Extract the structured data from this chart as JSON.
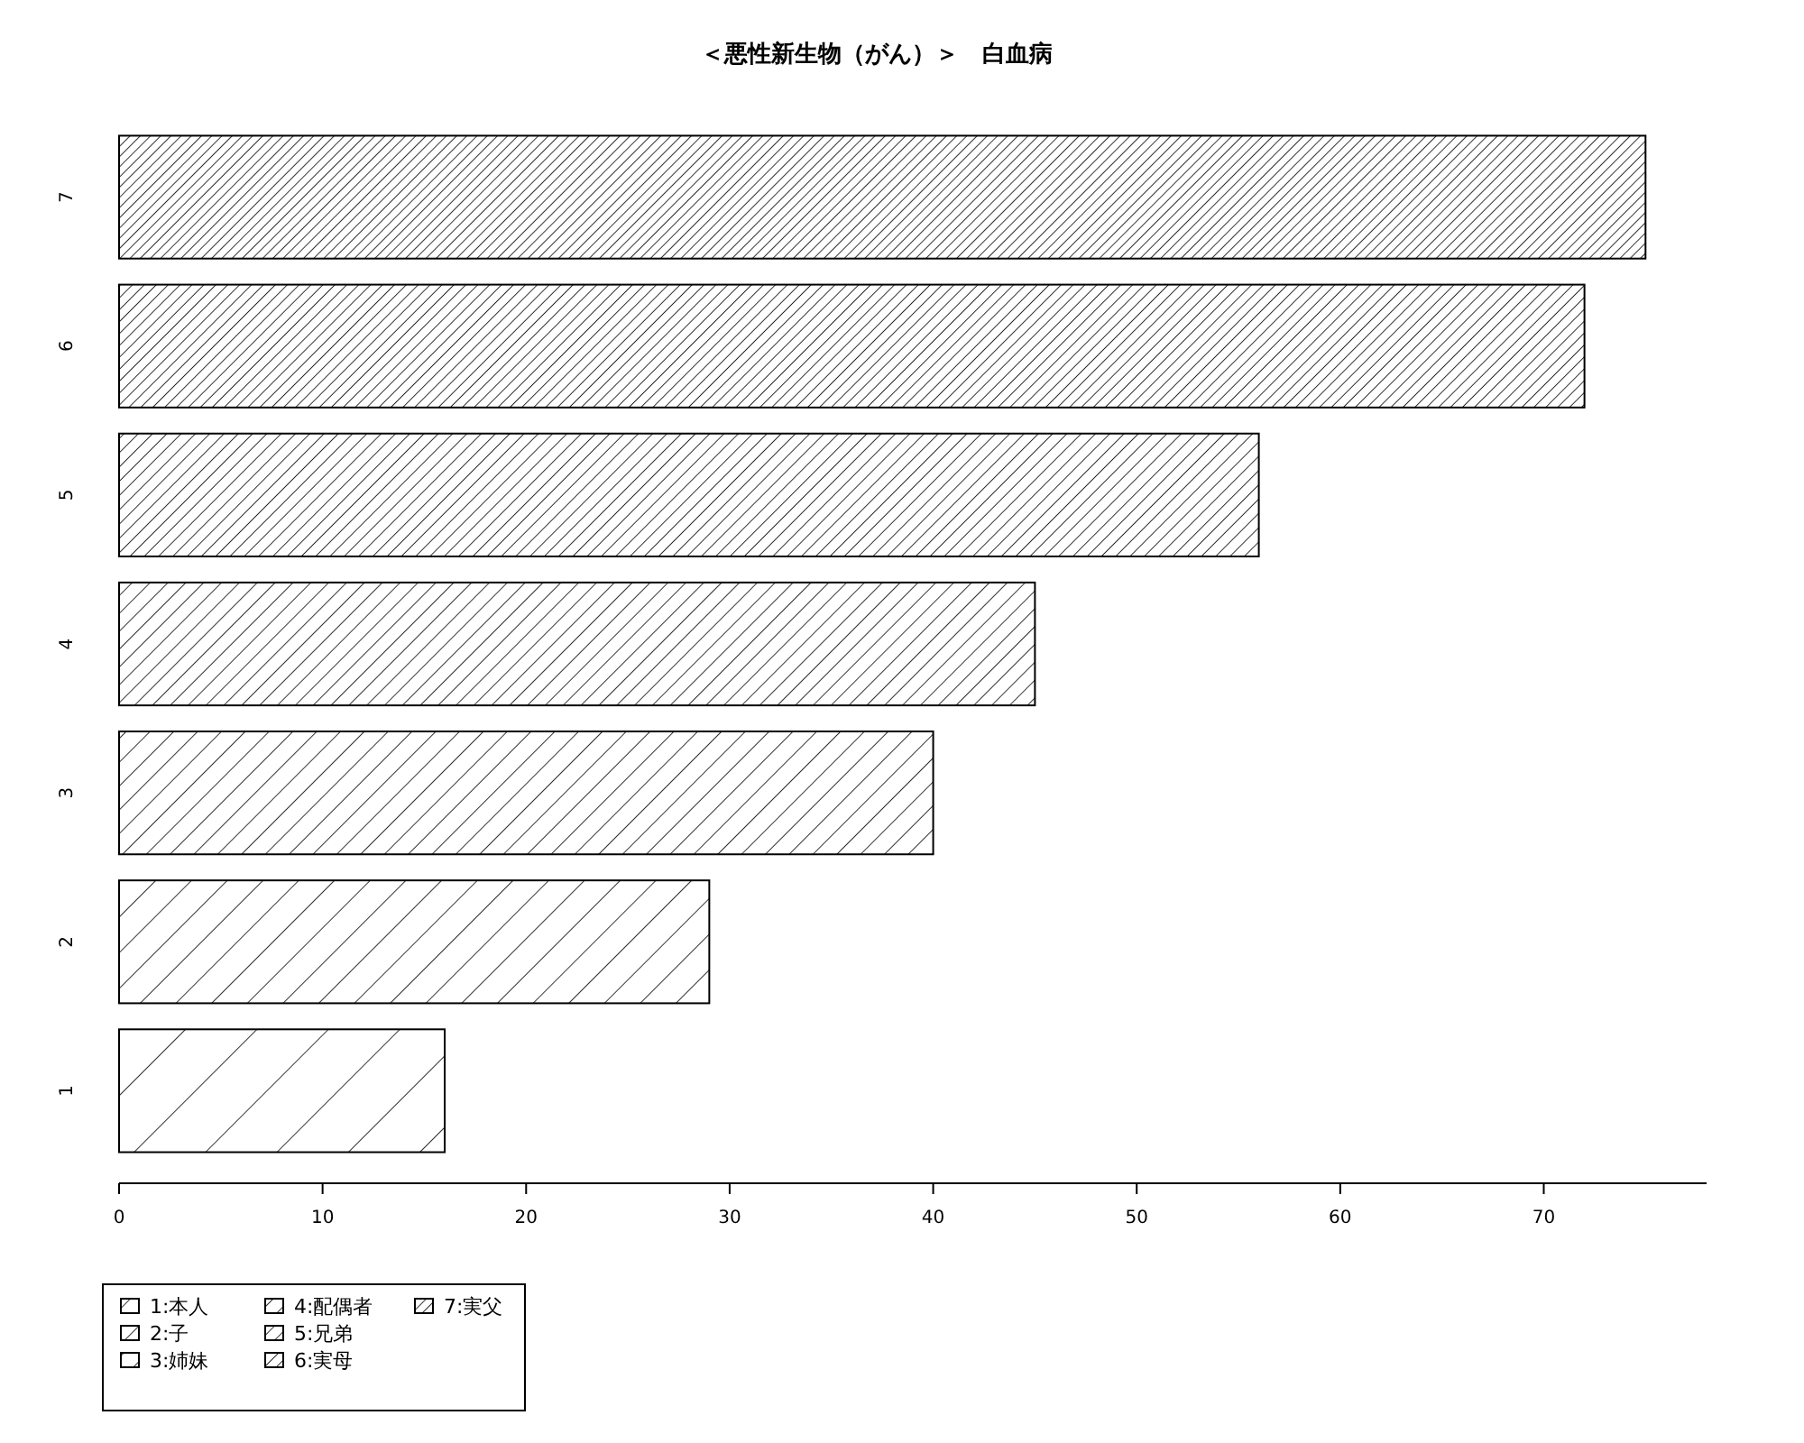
{
  "chart_data": {
    "type": "bar",
    "orientation": "horizontal",
    "title": "＜悪性新生物（がん）＞　白血病",
    "categories": [
      "7",
      "6",
      "5",
      "4",
      "3",
      "2",
      "1"
    ],
    "series": [
      {
        "name": "1:本人",
        "color": "#000000",
        "values": [
          null,
          null,
          null,
          null,
          null,
          null,
          16
        ]
      },
      {
        "name": "2:子",
        "color": "#000000",
        "values": [
          null,
          null,
          null,
          null,
          null,
          29,
          null
        ]
      },
      {
        "name": "3:姉妹",
        "color": "#000000",
        "values": [
          null,
          null,
          null,
          null,
          40,
          null,
          null
        ]
      },
      {
        "name": "4:配偶者",
        "color": "#000000",
        "values": [
          null,
          null,
          null,
          45,
          null,
          null,
          null
        ]
      },
      {
        "name": "5:兄弟",
        "color": "#000000",
        "values": [
          null,
          null,
          56,
          null,
          null,
          null,
          null
        ]
      },
      {
        "name": "6:実母",
        "color": "#000000",
        "values": [
          null,
          72,
          null,
          null,
          null,
          null,
          null
        ]
      },
      {
        "name": "7:実父",
        "color": "#000000",
        "values": [
          75,
          null,
          null,
          null,
          null,
          null,
          null
        ]
      }
    ],
    "xlim": [
      0,
      78
    ],
    "xticks": [
      0,
      10,
      20,
      30,
      40,
      50,
      60,
      70
    ],
    "grid": false,
    "legend": "bottom left"
  }
}
